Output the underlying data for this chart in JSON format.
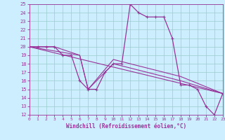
{
  "xlabel": "Windchill (Refroidissement éolien,°C)",
  "xlim": [
    0,
    23
  ],
  "ylim": [
    12,
    25
  ],
  "xticks": [
    0,
    1,
    2,
    3,
    4,
    5,
    6,
    7,
    8,
    9,
    10,
    11,
    12,
    13,
    14,
    15,
    16,
    17,
    18,
    19,
    20,
    21,
    22,
    23
  ],
  "yticks": [
    12,
    13,
    14,
    15,
    16,
    17,
    18,
    19,
    20,
    21,
    22,
    23,
    24,
    25
  ],
  "bg_color": "#cceeff",
  "line_color": "#993399",
  "grid_color": "#99cccc",
  "curve1_x": [
    0,
    1,
    2,
    3,
    4,
    5,
    6,
    7,
    8,
    9,
    10,
    11,
    12,
    13,
    14,
    15,
    16,
    17,
    18,
    19,
    20,
    21,
    22,
    23
  ],
  "curve1_y": [
    20,
    20,
    20,
    20,
    19,
    19,
    16,
    15,
    15,
    17,
    18,
    18,
    25,
    24,
    23.5,
    23.5,
    23.5,
    21,
    15.5,
    15.5,
    15,
    13,
    12,
    14.5
  ],
  "curve2_x": [
    0,
    23
  ],
  "curve2_y": [
    20,
    14.5
  ],
  "curve3_x": [
    0,
    3,
    6,
    7,
    10,
    14,
    18,
    23
  ],
  "curve3_y": [
    20,
    20,
    19,
    15,
    18.5,
    17.5,
    16.5,
    14.5
  ],
  "curve4_x": [
    0,
    3,
    6,
    7,
    10,
    14,
    18,
    23
  ],
  "curve4_y": [
    20,
    19.5,
    19,
    15,
    18,
    17,
    16,
    14.5
  ]
}
